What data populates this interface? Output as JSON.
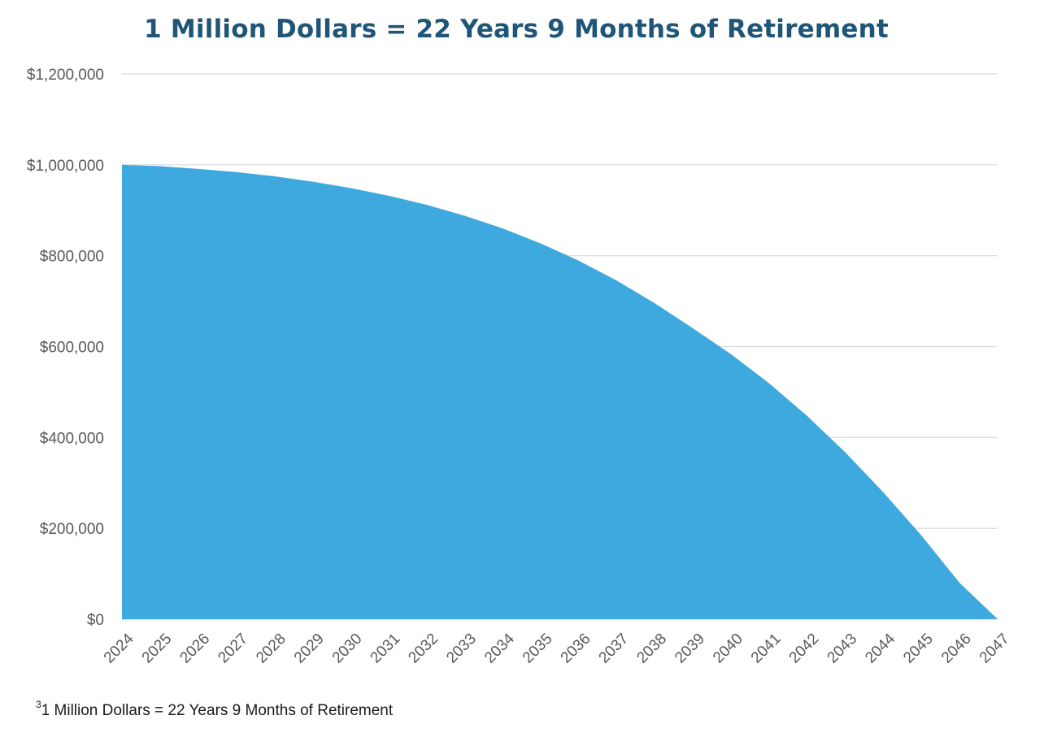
{
  "chart_data": {
    "type": "area",
    "title": "1 Million Dollars = 22 Years 9 Months of Retirement",
    "xlabel": "",
    "ylabel": "",
    "categories": [
      "2024",
      "2025",
      "2026",
      "2027",
      "2028",
      "2029",
      "2030",
      "2031",
      "2032",
      "2033",
      "2034",
      "2035",
      "2036",
      "2037",
      "2038",
      "2039",
      "2040",
      "2041",
      "2042",
      "2043",
      "2044",
      "2045",
      "2046",
      "2047"
    ],
    "series": [
      {
        "values": [
          1000000,
          997000,
          991000,
          984000,
          975000,
          963000,
          949000,
          932000,
          912000,
          888000,
          860000,
          827000,
          789000,
          745000,
          695000,
          640000,
          583000,
          519000,
          447000,
          367000,
          279000,
          184000,
          80000,
          0
        ]
      }
    ],
    "ylim": [
      0,
      1200000
    ],
    "yticks": [
      0,
      200000,
      400000,
      600000,
      800000,
      1000000,
      1200000
    ],
    "ytick_labels": [
      "$0",
      "$200,000",
      "$400,000",
      "$600,000",
      "$800,000",
      "$1,000,000",
      "$1,200,000"
    ],
    "grid": true,
    "legend": "none",
    "fill_color": "#3da9df",
    "grid_color": "#d9d9d9",
    "title_color": "#1f5677"
  },
  "footnote": {
    "marker": "3",
    "text": "1 Million Dollars = 22 Years 9 Months of Retirement"
  }
}
